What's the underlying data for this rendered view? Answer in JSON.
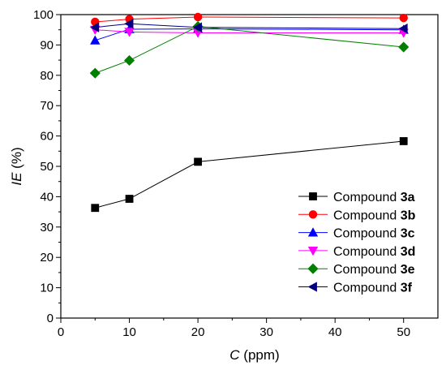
{
  "chart_data": {
    "type": "line",
    "title": "",
    "xlabel_italic": "C",
    "xlabel_unit": " (ppm)",
    "ylabel_italic": "IE",
    "ylabel_unit": " (%)",
    "xlim": [
      0,
      55
    ],
    "ylim": [
      0,
      100
    ],
    "xticks": [
      0,
      10,
      20,
      30,
      40,
      50
    ],
    "yticks": [
      0,
      10,
      20,
      30,
      40,
      50,
      60,
      70,
      80,
      90,
      100
    ],
    "grid": false,
    "legend_position": "bottom-right",
    "x": [
      5,
      10,
      20,
      50
    ],
    "series": [
      {
        "name_prefix": "Compound ",
        "name_bold": "3a",
        "color": "#000000",
        "marker": "square",
        "values": [
          36.3,
          39.3,
          51.5,
          58.3
        ]
      },
      {
        "name_prefix": "Compound ",
        "name_bold": "3b",
        "color": "#ff0000",
        "marker": "circle",
        "values": [
          97.6,
          98.5,
          99.2,
          98.9
        ]
      },
      {
        "name_prefix": "Compound ",
        "name_bold": "3c",
        "color": "#0000ff",
        "marker": "triangle-up",
        "values": [
          91.5,
          95.2,
          95.3,
          95.0
        ]
      },
      {
        "name_prefix": "Compound ",
        "name_bold": "3d",
        "color": "#ff00ff",
        "marker": "triangle-down",
        "values": [
          95.0,
          94.3,
          94.0,
          94.0
        ]
      },
      {
        "name_prefix": "Compound ",
        "name_bold": "3e",
        "color": "#008000",
        "marker": "diamond",
        "values": [
          80.7,
          84.9,
          96.1,
          89.3
        ]
      },
      {
        "name_prefix": "Compound ",
        "name_bold": "3f",
        "color": "#000080",
        "marker": "triangle-left",
        "values": [
          95.8,
          97.0,
          95.8,
          95.4
        ]
      }
    ]
  }
}
